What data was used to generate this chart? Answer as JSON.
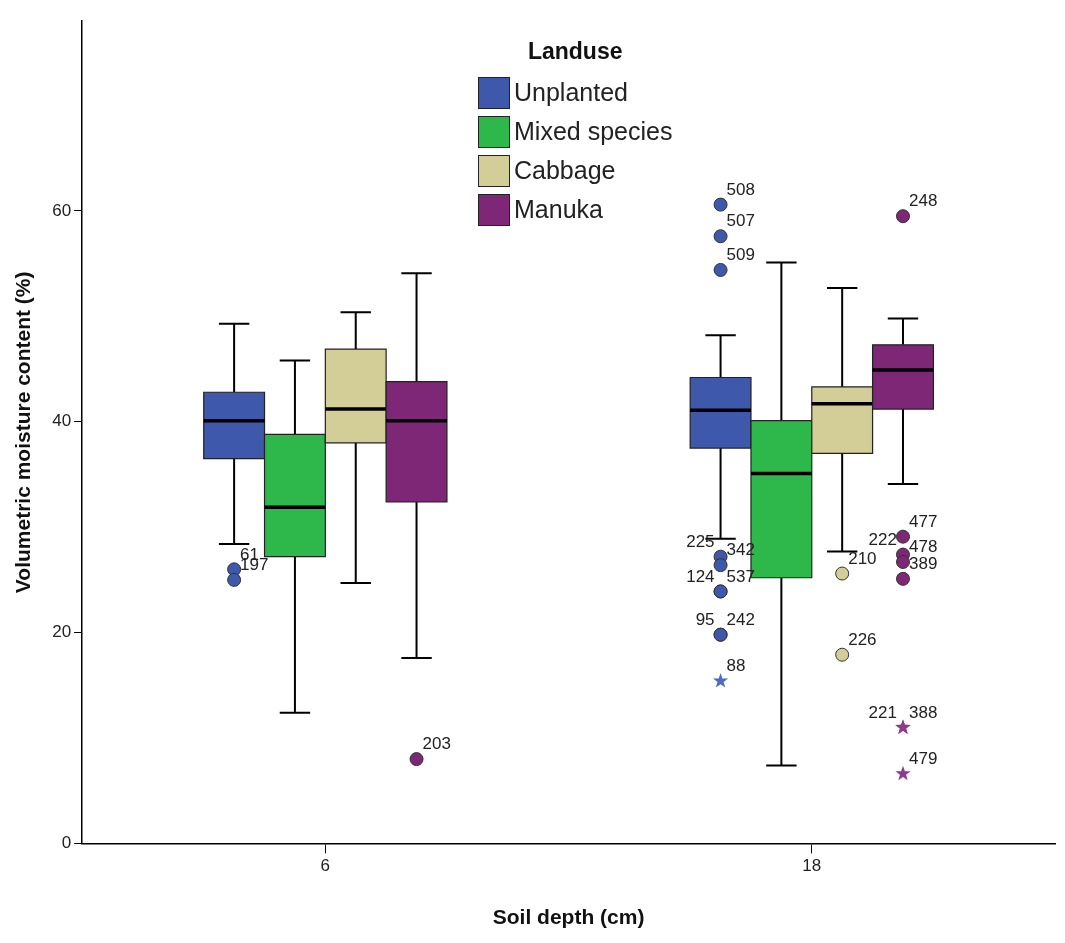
{
  "chart_data": {
    "type": "box",
    "xlabel": "Soil depth (cm)",
    "ylabel": "Volumetric moisture content (%)",
    "legend_title": "Landuse",
    "legend": "top",
    "grid": false,
    "categories": [
      "6",
      "18"
    ],
    "ylim": [
      0,
      78
    ],
    "yticks": [
      0,
      20,
      40,
      60
    ],
    "series": [
      {
        "name": "Unplanted",
        "color": "#3e58ac",
        "boxes": [
          {
            "low": 28.4,
            "q1": 36.5,
            "median": 40.1,
            "q3": 42.8,
            "high": 49.3,
            "outliers": [
              26.0,
              25.0
            ]
          },
          {
            "low": 28.9,
            "q1": 37.5,
            "median": 41.1,
            "q3": 44.2,
            "high": 48.2,
            "outliers": [
              60.6,
              57.6,
              54.4,
              27.2,
              26.4,
              23.9,
              23.9,
              19.8,
              19.8
            ]
          }
        ]
      },
      {
        "name": "Mixed species",
        "color": "#2eb84b",
        "boxes": [
          {
            "low": 12.4,
            "q1": 27.2,
            "median": 31.9,
            "q3": 38.8,
            "high": 45.8
          },
          {
            "low": 7.4,
            "q1": 25.2,
            "median": 35.1,
            "q3": 40.1,
            "high": 55.1
          }
        ]
      },
      {
        "name": "Cabbage",
        "color": "#d3ce97",
        "boxes": [
          {
            "low": 24.7,
            "q1": 38.0,
            "median": 41.2,
            "q3": 46.9,
            "high": 50.4
          },
          {
            "low": 27.7,
            "q1": 37.0,
            "median": 41.7,
            "q3": 43.3,
            "high": 52.7,
            "outliers": [
              25.6,
              17.9
            ]
          }
        ]
      },
      {
        "name": "Manuka",
        "color": "#7e2777",
        "boxes": [
          {
            "low": 17.6,
            "q1": 32.4,
            "median": 40.1,
            "q3": 43.8,
            "high": 54.1,
            "outliers": [
              8.0
            ]
          },
          {
            "low": 34.1,
            "q1": 41.2,
            "median": 44.9,
            "q3": 47.3,
            "high": 49.8,
            "outliers": [
              59.5,
              29.1,
              27.4,
              26.7,
              25.1
            ]
          }
        ]
      },
      {
        "type": "scatter",
        "marker": "star",
        "color": "#4a6cc8",
        "x": [
          "18"
        ],
        "values": [
          15.4
        ]
      },
      {
        "type": "scatter",
        "marker": "star",
        "color": "#8e3a8e",
        "x": [
          "18",
          "18",
          "18"
        ],
        "values": [
          11.0,
          11.0,
          6.6
        ]
      }
    ],
    "annotations": [
      "61",
      "197",
      "508",
      "507",
      "509",
      "225",
      "342",
      "124",
      "537",
      "95",
      "242",
      "210",
      "226",
      "203",
      "248",
      "477",
      "222",
      "478",
      "389",
      "88",
      "221",
      "388",
      "479"
    ]
  }
}
